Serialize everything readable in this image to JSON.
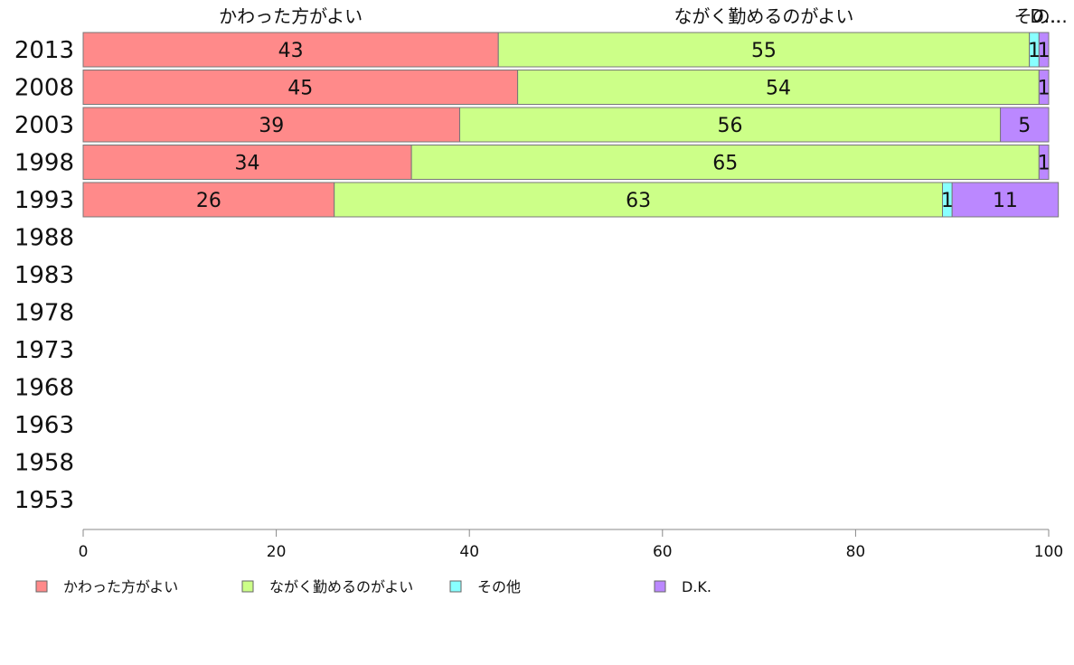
{
  "chart_data": {
    "type": "bar",
    "orientation": "horizontal",
    "stacked": true,
    "categories": [
      "2013",
      "2008",
      "2003",
      "1998",
      "1993",
      "1988",
      "1983",
      "1978",
      "1973",
      "1968",
      "1963",
      "1958",
      "1953"
    ],
    "series": [
      {
        "name": "かわった方がよい",
        "color": "#ff8a8a",
        "values": [
          43,
          45,
          39,
          34,
          26,
          null,
          null,
          null,
          null,
          null,
          null,
          null,
          null
        ]
      },
      {
        "name": "ながく勤めるのがよい",
        "color": "#ccff88",
        "values": [
          55,
          54,
          56,
          65,
          63,
          null,
          null,
          null,
          null,
          null,
          null,
          null,
          null
        ]
      },
      {
        "name": "その他",
        "color": "#88ffff",
        "values": [
          1,
          0,
          0,
          0,
          1,
          null,
          null,
          null,
          null,
          null,
          null,
          null,
          null
        ]
      },
      {
        "name": "D.K.",
        "color": "#bb88ff",
        "values": [
          1,
          1,
          5,
          1,
          11,
          null,
          null,
          null,
          null,
          null,
          null,
          null,
          null
        ]
      }
    ],
    "xlim": [
      0,
      100
    ],
    "xticks": [
      0,
      20,
      40,
      60,
      80,
      100
    ],
    "grid": false,
    "legend": "bottom",
    "top_labels": [
      "かわった方がよい",
      "ながく勤めるのがよい",
      "その...",
      "D..."
    ]
  }
}
